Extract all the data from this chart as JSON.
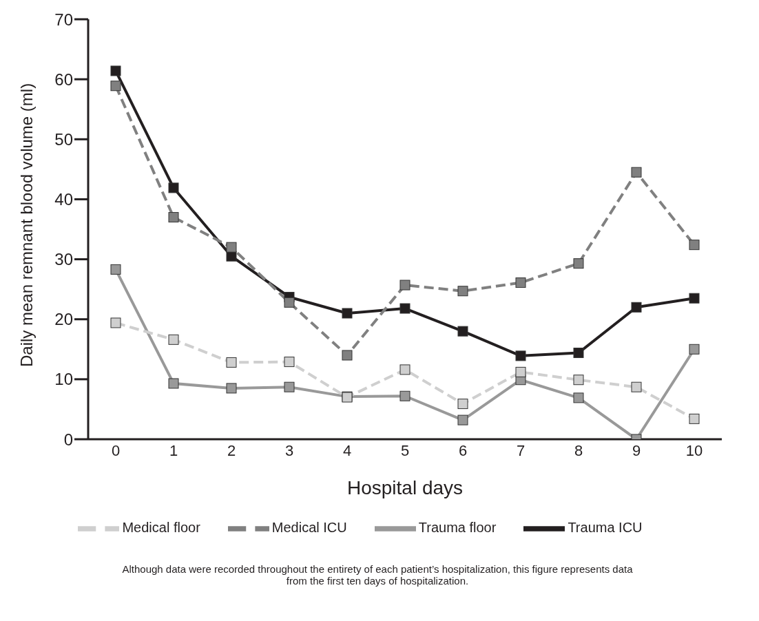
{
  "chart_data": {
    "type": "line",
    "xlabel": "Hospital days",
    "ylabel": "Daily mean remnant blood volume (ml)",
    "categories": [
      "0",
      "1",
      "2",
      "3",
      "4",
      "5",
      "6",
      "7",
      "8",
      "9",
      "10"
    ],
    "series": [
      {
        "name": "Medical floor",
        "color": "#cfcfcf",
        "line_style": "dashed",
        "values": [
          19.4,
          16.6,
          12.8,
          12.9,
          7.0,
          11.6,
          5.9,
          11.2,
          9.9,
          8.7,
          3.4
        ]
      },
      {
        "name": "Medical ICU",
        "color": "#808080",
        "line_style": "dashed",
        "values": [
          58.9,
          37.0,
          32.0,
          22.8,
          14.0,
          25.7,
          24.7,
          26.1,
          29.3,
          44.5,
          32.4
        ]
      },
      {
        "name": "Trauma floor",
        "color": "#999999",
        "line_style": "solid",
        "values": [
          28.3,
          9.3,
          8.5,
          8.7,
          7.1,
          7.2,
          3.2,
          9.9,
          6.9,
          0,
          15.0
        ]
      },
      {
        "name": "Trauma ICU",
        "color": "#231f20",
        "line_style": "solid",
        "values": [
          61.4,
          41.9,
          30.5,
          23.7,
          21.0,
          21.8,
          18.0,
          13.9,
          14.4,
          22.0,
          23.5
        ]
      }
    ],
    "ylim": [
      0,
      70
    ],
    "yticks": [
      0,
      10,
      20,
      30,
      40,
      50,
      60,
      70
    ],
    "grid": false,
    "legend": "bottom",
    "marker": "square",
    "annotations": [
      "Although data were recorded throughout the entirety of each patient’s hospitalization, this figure represents data from the first ten days of hospitalization."
    ]
  }
}
